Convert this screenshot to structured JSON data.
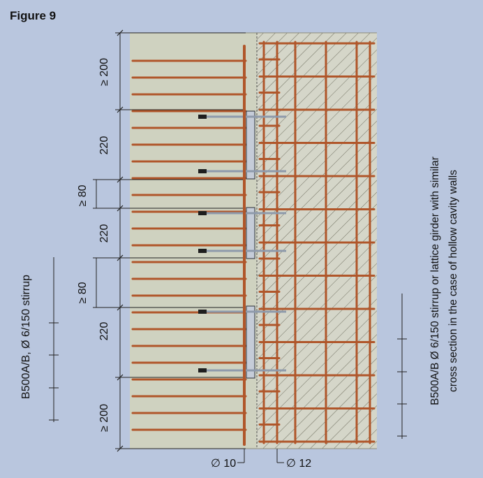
{
  "figure": {
    "title": "Figure 9"
  },
  "dimensions": {
    "top": "≥ 200",
    "module_1": "220",
    "gap_1": "≥ 80",
    "module_2": "220",
    "gap_2": "≥ 80",
    "module_3": "220",
    "bottom": "≥ 200"
  },
  "labels": {
    "left_stirrup": "B500A/B, Ø 6/150 stirrup",
    "right_line_1": "B500A/B Ø 6/150 stirrup or lattice girder with similar",
    "right_line_2": "cross section in the case of hollow cavity walls",
    "bar_left": "∅ 10",
    "bar_right": "∅ 12"
  },
  "colors": {
    "background": "#b9c6de",
    "concrete_left": "#cfd2c0",
    "concrete_right": "#d5d6c9",
    "rebar": "#b0562a",
    "stud_steel": "#8e9aab"
  }
}
